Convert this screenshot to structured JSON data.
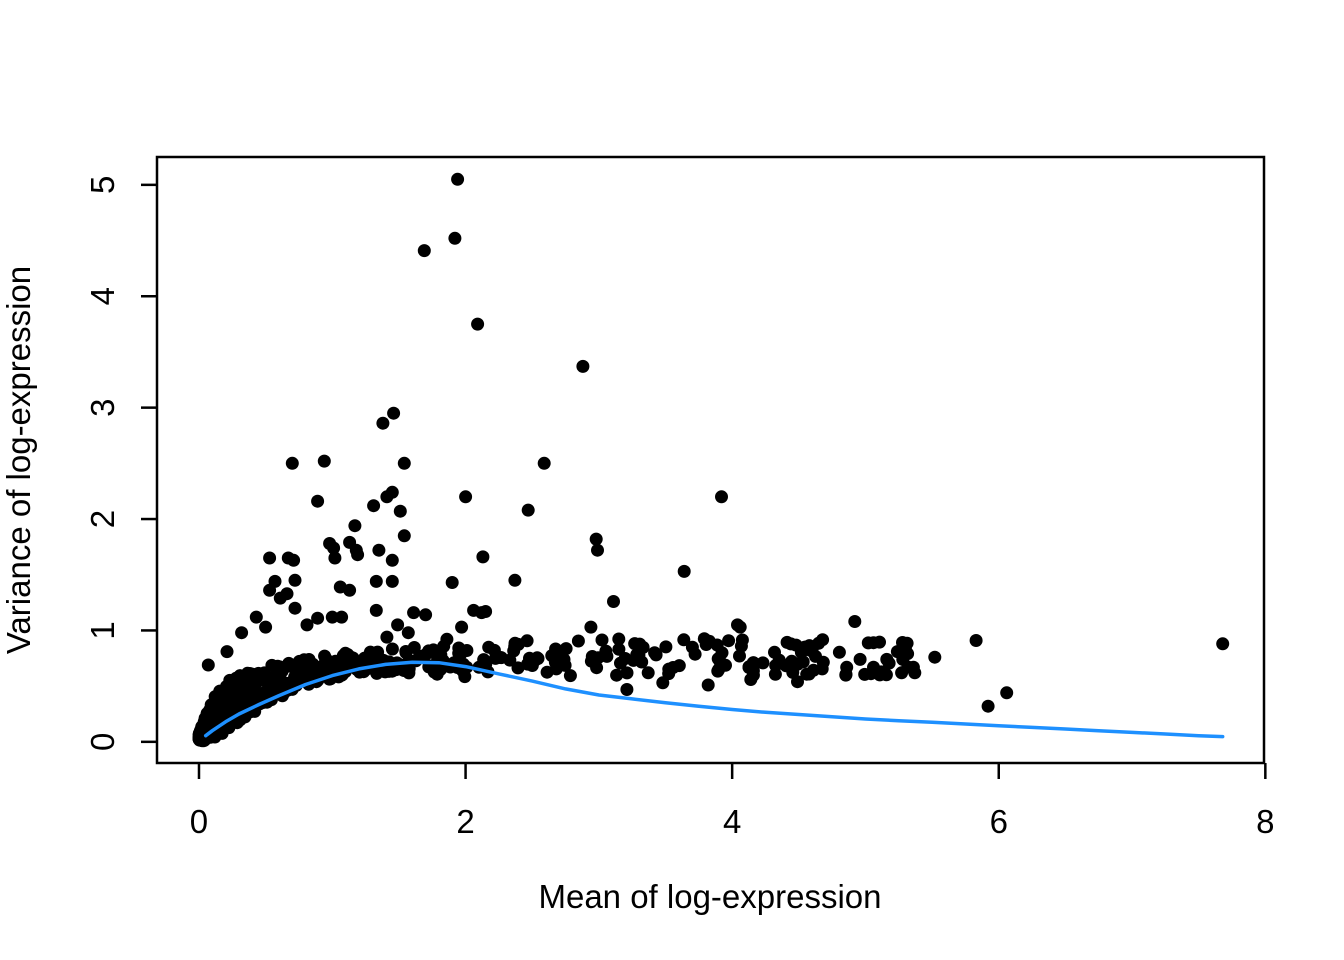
{
  "chart_data": {
    "type": "scatter",
    "title": "",
    "xlabel": "Mean of log-expression",
    "ylabel": "Variance of log-expression",
    "x_ticks": [
      0,
      2,
      4,
      6,
      8
    ],
    "y_ticks": [
      0,
      1,
      2,
      3,
      4,
      5
    ],
    "xlim": [
      -0.315,
      7.99
    ],
    "ylim": [
      -0.19,
      5.25
    ],
    "grid": false,
    "legend": "none",
    "point_color": "#000000",
    "trend_color": "#1E90FF",
    "trend": [
      [
        0.05,
        0.055
      ],
      [
        0.1,
        0.1
      ],
      [
        0.2,
        0.18
      ],
      [
        0.3,
        0.25
      ],
      [
        0.45,
        0.335
      ],
      [
        0.6,
        0.415
      ],
      [
        0.8,
        0.515
      ],
      [
        1.0,
        0.595
      ],
      [
        1.2,
        0.655
      ],
      [
        1.4,
        0.695
      ],
      [
        1.6,
        0.715
      ],
      [
        1.8,
        0.71
      ],
      [
        2.0,
        0.675
      ],
      [
        2.25,
        0.61
      ],
      [
        2.5,
        0.545
      ],
      [
        2.75,
        0.475
      ],
      [
        3.0,
        0.42
      ],
      [
        3.25,
        0.385
      ],
      [
        3.5,
        0.35
      ],
      [
        3.75,
        0.32
      ],
      [
        4.0,
        0.29
      ],
      [
        4.25,
        0.265
      ],
      [
        4.5,
        0.245
      ],
      [
        4.75,
        0.225
      ],
      [
        5.0,
        0.205
      ],
      [
        5.25,
        0.19
      ],
      [
        5.5,
        0.175
      ],
      [
        5.75,
        0.16
      ],
      [
        6.0,
        0.145
      ],
      [
        6.25,
        0.13
      ],
      [
        6.5,
        0.115
      ],
      [
        6.75,
        0.1
      ],
      [
        7.0,
        0.085
      ],
      [
        7.25,
        0.07
      ],
      [
        7.5,
        0.055
      ],
      [
        7.68,
        0.047
      ]
    ],
    "outlier_points": [
      [
        1.94,
        5.05
      ],
      [
        1.92,
        4.52
      ],
      [
        1.69,
        4.41
      ],
      [
        2.09,
        3.75
      ],
      [
        2.88,
        3.37
      ],
      [
        1.46,
        2.95
      ],
      [
        1.38,
        2.86
      ],
      [
        0.7,
        2.5
      ],
      [
        0.94,
        2.52
      ],
      [
        1.54,
        2.5
      ],
      [
        2.59,
        2.5
      ],
      [
        0.89,
        2.16
      ],
      [
        1.31,
        2.12
      ],
      [
        1.41,
        2.2
      ],
      [
        1.45,
        2.24
      ],
      [
        1.51,
        2.07
      ],
      [
        2.0,
        2.2
      ],
      [
        2.47,
        2.08
      ],
      [
        3.92,
        2.2
      ],
      [
        1.17,
        1.94
      ],
      [
        1.54,
        1.85
      ],
      [
        2.98,
        1.82
      ],
      [
        2.99,
        1.72
      ],
      [
        0.98,
        1.78
      ],
      [
        1.01,
        1.74
      ],
      [
        1.13,
        1.79
      ],
      [
        1.18,
        1.72
      ],
      [
        1.35,
        1.72
      ],
      [
        0.53,
        1.65
      ],
      [
        0.67,
        1.65
      ],
      [
        0.71,
        1.63
      ],
      [
        1.02,
        1.65
      ],
      [
        1.19,
        1.68
      ],
      [
        1.45,
        1.63
      ],
      [
        2.13,
        1.66
      ],
      [
        3.64,
        1.53
      ],
      [
        0.57,
        1.44
      ],
      [
        0.72,
        1.45
      ],
      [
        1.33,
        1.44
      ],
      [
        1.45,
        1.44
      ],
      [
        1.9,
        1.43
      ],
      [
        2.37,
        1.45
      ],
      [
        0.53,
        1.36
      ],
      [
        0.66,
        1.33
      ],
      [
        1.06,
        1.39
      ],
      [
        1.13,
        1.36
      ],
      [
        0.61,
        1.29
      ],
      [
        3.11,
        1.26
      ],
      [
        0.72,
        1.2
      ],
      [
        1.33,
        1.18
      ],
      [
        2.06,
        1.18
      ],
      [
        1.61,
        1.16
      ],
      [
        2.12,
        1.16
      ],
      [
        1.7,
        1.14
      ],
      [
        2.15,
        1.17
      ],
      [
        0.43,
        1.12
      ],
      [
        0.89,
        1.11
      ],
      [
        1.0,
        1.12
      ],
      [
        1.07,
        1.12
      ],
      [
        0.5,
        1.03
      ],
      [
        0.81,
        1.05
      ],
      [
        1.49,
        1.05
      ],
      [
        1.97,
        1.03
      ],
      [
        2.94,
        1.03
      ],
      [
        4.04,
        1.05
      ],
      [
        4.06,
        1.03
      ],
      [
        4.92,
        1.08
      ],
      [
        0.32,
        0.98
      ],
      [
        1.57,
        0.98
      ],
      [
        1.41,
        0.94
      ],
      [
        1.86,
        0.92
      ],
      [
        0.21,
        0.81
      ],
      [
        0.07,
        0.69
      ],
      [
        3.21,
        0.47
      ],
      [
        3.37,
        0.62
      ],
      [
        3.48,
        0.53
      ],
      [
        3.82,
        0.51
      ],
      [
        4.14,
        0.56
      ],
      [
        4.49,
        0.54
      ],
      [
        4.96,
        0.74
      ],
      [
        5.06,
        0.89
      ],
      [
        5.06,
        0.67
      ],
      [
        5.16,
        0.74
      ],
      [
        5.24,
        0.81
      ],
      [
        5.28,
        0.74
      ],
      [
        5.3,
        0.84
      ],
      [
        5.36,
        0.67
      ],
      [
        5.37,
        0.62
      ],
      [
        5.52,
        0.76
      ],
      [
        5.83,
        0.91
      ],
      [
        5.92,
        0.32
      ],
      [
        6.06,
        0.44
      ],
      [
        7.68,
        0.88
      ]
    ],
    "dense_cloud_bands": [
      {
        "n": 40,
        "x0": 0.0,
        "x1": 0.05,
        "xpow": 1.2,
        "b0": 0.005,
        "b1": 0.01,
        "t0": 0.05,
        "t1": 0.12,
        "ypow": 1.0
      },
      {
        "n": 95,
        "x0": 0.0,
        "x1": 0.1,
        "xpow": 1.5,
        "b0": 0.005,
        "b1": 0.02,
        "t0": 0.07,
        "t1": 0.38,
        "ypow": 0.95
      },
      {
        "n": 62,
        "x0": 0.1,
        "x1": 0.22,
        "xpow": 1.1,
        "b0": 0.02,
        "b1": 0.1,
        "t0": 0.38,
        "t1": 0.55,
        "ypow": 1.0
      },
      {
        "n": 54,
        "x0": 0.22,
        "x1": 0.36,
        "xpow": 1.0,
        "b0": 0.1,
        "b1": 0.23,
        "t0": 0.55,
        "t1": 0.62,
        "ypow": 1.0
      },
      {
        "n": 50,
        "x0": 0.36,
        "x1": 0.56,
        "xpow": 1.0,
        "b0": 0.23,
        "b1": 0.37,
        "t0": 0.62,
        "t1": 0.7,
        "ypow": 1.0
      },
      {
        "n": 47,
        "x0": 0.56,
        "x1": 0.82,
        "xpow": 1.0,
        "b0": 0.37,
        "b1": 0.51,
        "t0": 0.7,
        "t1": 0.75,
        "ypow": 1.0
      },
      {
        "n": 43,
        "x0": 0.82,
        "x1": 1.12,
        "xpow": 1.0,
        "b0": 0.51,
        "b1": 0.6,
        "t0": 0.75,
        "t1": 0.8,
        "ypow": 1.0
      },
      {
        "n": 36,
        "x0": 1.12,
        "x1": 1.45,
        "xpow": 1.0,
        "b0": 0.6,
        "b1": 0.62,
        "t0": 0.8,
        "t1": 0.84,
        "ypow": 1.0
      },
      {
        "n": 28,
        "x0": 1.45,
        "x1": 1.8,
        "xpow": 1.0,
        "b0": 0.6,
        "b1": 0.6,
        "t0": 0.84,
        "t1": 0.86,
        "ypow": 1.0
      },
      {
        "n": 17,
        "x0": 1.8,
        "x1": 2.12,
        "xpow": 1.0,
        "b0": 0.58,
        "b1": 0.58,
        "t0": 0.86,
        "t1": 0.89,
        "ypow": 1.0
      },
      {
        "n": 12,
        "x0": 2.12,
        "x1": 2.38,
        "xpow": 1.0,
        "b0": 0.57,
        "b1": 0.58,
        "t0": 0.89,
        "t1": 0.91,
        "ypow": 1.0
      },
      {
        "n": 118,
        "x0": 2.38,
        "x1": 5.32,
        "xpow": 1.0,
        "b0": 0.585,
        "b1": 0.6,
        "t0": 0.93,
        "t1": 0.93,
        "ypow": 1.15
      }
    ]
  }
}
